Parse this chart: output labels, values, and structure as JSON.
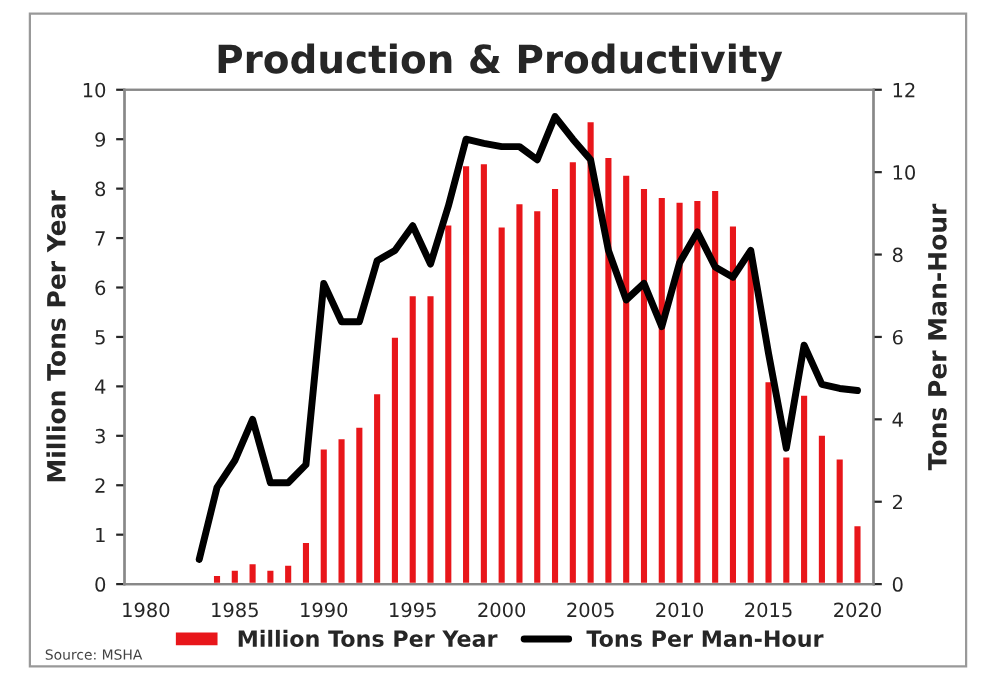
{
  "chart_data": {
    "type": "bar",
    "title": "Production & Productivity",
    "ylabel": "Million Tons Per Year",
    "y2label": "Tons Per Man-Hour",
    "x": [
      1984,
      1985,
      1986,
      1987,
      1988,
      1989,
      1990,
      1991,
      1992,
      1993,
      1994,
      1995,
      1996,
      1997,
      1998,
      1999,
      2000,
      2001,
      2002,
      2003,
      2004,
      2005,
      2006,
      2007,
      2008,
      2009,
      2010,
      2011,
      2012,
      2013,
      2014,
      2015,
      2016,
      2017,
      2018,
      2019,
      2020
    ],
    "series": [
      {
        "name": "Million Tons Per Year",
        "color": "#e8161a",
        "values": [
          0.19,
          0.3,
          0.43,
          0.3,
          0.4,
          0.86,
          2.75,
          2.96,
          3.19,
          3.87,
          5.01,
          5.85,
          5.85,
          7.28,
          8.48,
          8.52,
          7.24,
          7.71,
          7.57,
          8.02,
          8.56,
          9.37,
          8.65,
          8.29,
          8.02,
          7.84,
          7.74,
          7.78,
          7.98,
          7.26,
          6.7,
          4.11,
          2.59,
          3.84,
          3.03,
          2.55,
          1.2
        ]
      },
      {
        "name": "Tons Per Man-Hour",
        "type": "line",
        "axis": "y2",
        "color": "#000000",
        "x": [
          1983,
          1984,
          1985,
          1986,
          1987,
          1988,
          1989,
          1990,
          1991,
          1992,
          1993,
          1994,
          1995,
          1996,
          1997,
          1998,
          1999,
          2000,
          2001,
          2002,
          2003,
          2004,
          2005,
          2006,
          2007,
          2008,
          2009,
          2010,
          2011,
          2012,
          2013,
          2014,
          2015,
          2016,
          2017,
          2018,
          2019,
          2020
        ],
        "values": [
          0.6,
          2.35,
          3.0,
          4.0,
          2.46,
          2.46,
          2.9,
          7.3,
          6.37,
          6.37,
          7.85,
          8.1,
          8.7,
          7.77,
          9.17,
          10.8,
          10.7,
          10.62,
          10.62,
          10.3,
          11.35,
          10.8,
          10.3,
          8.1,
          6.9,
          7.3,
          6.25,
          7.8,
          8.55,
          7.7,
          7.45,
          8.1,
          5.6,
          3.3,
          5.8,
          4.85,
          4.75,
          4.7
        ]
      }
    ],
    "xlim": [
      1978.8,
      2020.9
    ],
    "xticks": [
      1980,
      1985,
      1990,
      1995,
      2000,
      2005,
      2010,
      2015,
      2020
    ],
    "ylim": [
      0,
      10
    ],
    "yticks": [
      0,
      1,
      2,
      3,
      4,
      5,
      6,
      7,
      8,
      9,
      10
    ],
    "y2lim": [
      0,
      12
    ],
    "y2ticks": [
      0,
      2,
      4,
      6,
      8,
      10,
      12
    ],
    "grid": false,
    "legend": "bottom",
    "marker": "none",
    "line_style": "solid",
    "annotations": [
      "Source: MSHA"
    ]
  }
}
